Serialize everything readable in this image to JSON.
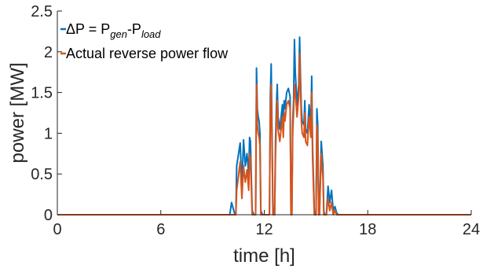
{
  "chart_data": {
    "type": "line",
    "xlabel": "time [h]",
    "ylabel": "power [MW]",
    "xlim": [
      0,
      24
    ],
    "ylim": [
      0,
      2.5
    ],
    "xticks": [
      0,
      6,
      12,
      18,
      24
    ],
    "yticks": [
      0,
      0.5,
      1,
      1.5,
      2,
      2.5
    ],
    "xtick_labels": [
      "0",
      "6",
      "12",
      "18",
      "24"
    ],
    "ytick_labels": [
      "0",
      "0.5",
      "1",
      "1.5",
      "2",
      "2.5"
    ],
    "grid": false,
    "legend_position": "top-left",
    "legend": {
      "series1": {
        "prefix": "ΔP = P",
        "sub1": "gen",
        "mid": "-P",
        "sub2": "load"
      },
      "series2": {
        "text": "Actual reverse power flow"
      }
    },
    "series": [
      {
        "key": "dP",
        "color": "#0072BD",
        "x": [
          0,
          10.0,
          10.1,
          10.3,
          10.35,
          10.4,
          10.6,
          10.7,
          10.8,
          10.9,
          11.0,
          11.1,
          11.15,
          11.2,
          11.3,
          11.4,
          11.5,
          11.55,
          11.6,
          11.65,
          11.7,
          11.75,
          11.8,
          11.9,
          12.0,
          12.1,
          12.2,
          12.3,
          12.35,
          12.4,
          12.45,
          12.5,
          12.6,
          12.65,
          12.7,
          12.75,
          12.8,
          12.9,
          13.0,
          13.05,
          13.1,
          13.15,
          13.2,
          13.3,
          13.4,
          13.5,
          13.55,
          13.6,
          13.65,
          13.7,
          13.75,
          13.8,
          13.9,
          14.0,
          14.05,
          14.1,
          14.15,
          14.2,
          14.3,
          14.35,
          14.4,
          14.5,
          14.6,
          14.7,
          14.75,
          14.8,
          14.9,
          15.0,
          15.05,
          15.1,
          15.15,
          15.2,
          15.3,
          15.4,
          15.45,
          15.5,
          15.6,
          15.7,
          15.8,
          15.9,
          16.0,
          16.1,
          16.2,
          16.3,
          24
        ],
        "y": [
          0,
          0,
          0.15,
          0,
          0,
          0.6,
          0.88,
          0.35,
          0.92,
          0.6,
          0.75,
          0.5,
          0.95,
          0.9,
          0.05,
          0,
          0,
          1.8,
          1.3,
          1.2,
          1.15,
          1.0,
          0.05,
          0,
          0,
          0,
          0,
          0,
          1.45,
          1.85,
          1.0,
          0.1,
          0,
          0.9,
          1.3,
          1.6,
          1.2,
          1.05,
          1.25,
          1.35,
          1.1,
          1.4,
          1.3,
          1.5,
          1.55,
          1.45,
          0.05,
          0,
          1.15,
          1.4,
          2.15,
          1.75,
          1.35,
          1.6,
          2.18,
          1.7,
          1.3,
          1.15,
          1.1,
          1.4,
          1.05,
          1.0,
          1.35,
          1.1,
          1.7,
          0.85,
          0.05,
          0,
          1.3,
          1.1,
          0.05,
          0,
          0.9,
          0.6,
          0.05,
          0,
          0,
          0.35,
          0.15,
          0.3,
          0.05,
          0.1,
          0.02,
          0,
          0
        ]
      },
      {
        "key": "actual",
        "color": "#D95319",
        "x": [
          0,
          10.0,
          10.1,
          10.3,
          10.35,
          10.4,
          10.6,
          10.7,
          10.8,
          10.9,
          11.0,
          11.1,
          11.15,
          11.2,
          11.3,
          11.4,
          11.5,
          11.55,
          11.6,
          11.65,
          11.7,
          11.75,
          11.8,
          11.9,
          12.0,
          12.1,
          12.2,
          12.3,
          12.35,
          12.4,
          12.45,
          12.5,
          12.6,
          12.65,
          12.7,
          12.75,
          12.8,
          12.9,
          13.0,
          13.05,
          13.1,
          13.15,
          13.2,
          13.3,
          13.4,
          13.5,
          13.55,
          13.6,
          13.65,
          13.7,
          13.75,
          13.8,
          13.9,
          14.0,
          14.05,
          14.1,
          14.15,
          14.2,
          14.3,
          14.35,
          14.4,
          14.5,
          14.6,
          14.7,
          14.75,
          14.8,
          14.9,
          15.0,
          15.05,
          15.1,
          15.15,
          15.2,
          15.3,
          15.4,
          15.45,
          15.5,
          15.6,
          15.7,
          15.8,
          15.9,
          16.0,
          16.1,
          16.2,
          16.3,
          24
        ],
        "y": [
          0,
          0,
          0,
          0,
          0,
          0.3,
          0.65,
          0.2,
          0.6,
          0.4,
          0.55,
          0.3,
          0.75,
          0.7,
          0,
          0,
          0,
          1.6,
          1.1,
          1.0,
          0.95,
          0.85,
          0,
          0,
          0,
          0,
          0,
          0,
          1.25,
          1.6,
          0.85,
          0,
          0,
          0.75,
          1.1,
          1.4,
          1.05,
          0.9,
          1.1,
          1.2,
          0.95,
          1.25,
          1.15,
          1.35,
          1.4,
          1.3,
          0,
          0,
          1.0,
          1.25,
          1.6,
          1.5,
          1.2,
          1.45,
          1.98,
          1.55,
          1.15,
          1.0,
          0.95,
          1.25,
          0.9,
          0.85,
          1.2,
          0.95,
          1.5,
          0.7,
          0,
          0,
          1.1,
          0.95,
          0,
          0,
          0.75,
          0.45,
          0,
          0,
          0,
          0.2,
          0.05,
          0.15,
          0,
          0.05,
          0,
          0,
          0
        ]
      }
    ]
  }
}
